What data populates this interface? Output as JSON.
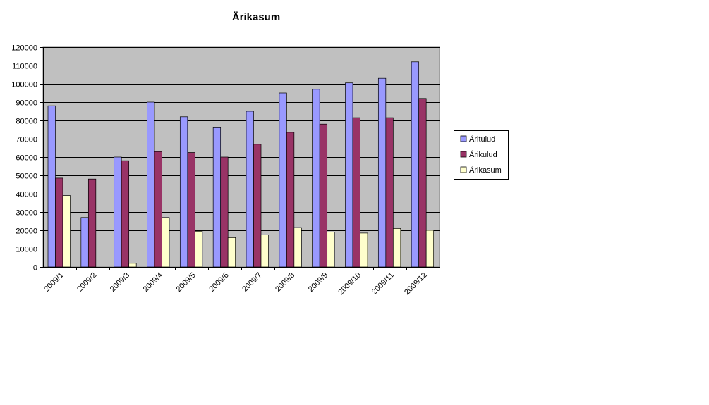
{
  "chart_data": {
    "type": "bar",
    "title": "Ärikasum",
    "xlabel": "",
    "ylabel": "",
    "categories": [
      "2009/1",
      "2009/2",
      "2009/3",
      "2009/4",
      "2009/5",
      "2009/6",
      "2009/7",
      "2009/8",
      "2009/9",
      "2009/10",
      "2009/11",
      "2009/12"
    ],
    "ylim": [
      0,
      120000
    ],
    "yticks": [
      "0",
      "10000",
      "20000",
      "30000",
      "40000",
      "50000",
      "60000",
      "70000",
      "80000",
      "90000",
      "100000",
      "110000",
      "120000"
    ],
    "grid": true,
    "legend_position": "right",
    "series": [
      {
        "name": "Äritulud",
        "color": "#9999ff",
        "values": [
          88000,
          27000,
          60000,
          90000,
          82000,
          76000,
          85000,
          95000,
          97000,
          100500,
          103000,
          112000
        ]
      },
      {
        "name": "Ärikulud",
        "color": "#993366",
        "values": [
          48500,
          48000,
          58000,
          63000,
          62500,
          60000,
          67000,
          73500,
          78000,
          81500,
          81500,
          92000
        ]
      },
      {
        "name": "Ärikasum",
        "color": "#ffffcc",
        "values": [
          39000,
          0,
          2000,
          27000,
          19500,
          16000,
          17500,
          21500,
          19000,
          18500,
          21000,
          20000
        ]
      }
    ],
    "colors": {
      "plot_bg": "#c0c0c0",
      "grid": "#000000",
      "bar_edge": "#000000"
    }
  }
}
